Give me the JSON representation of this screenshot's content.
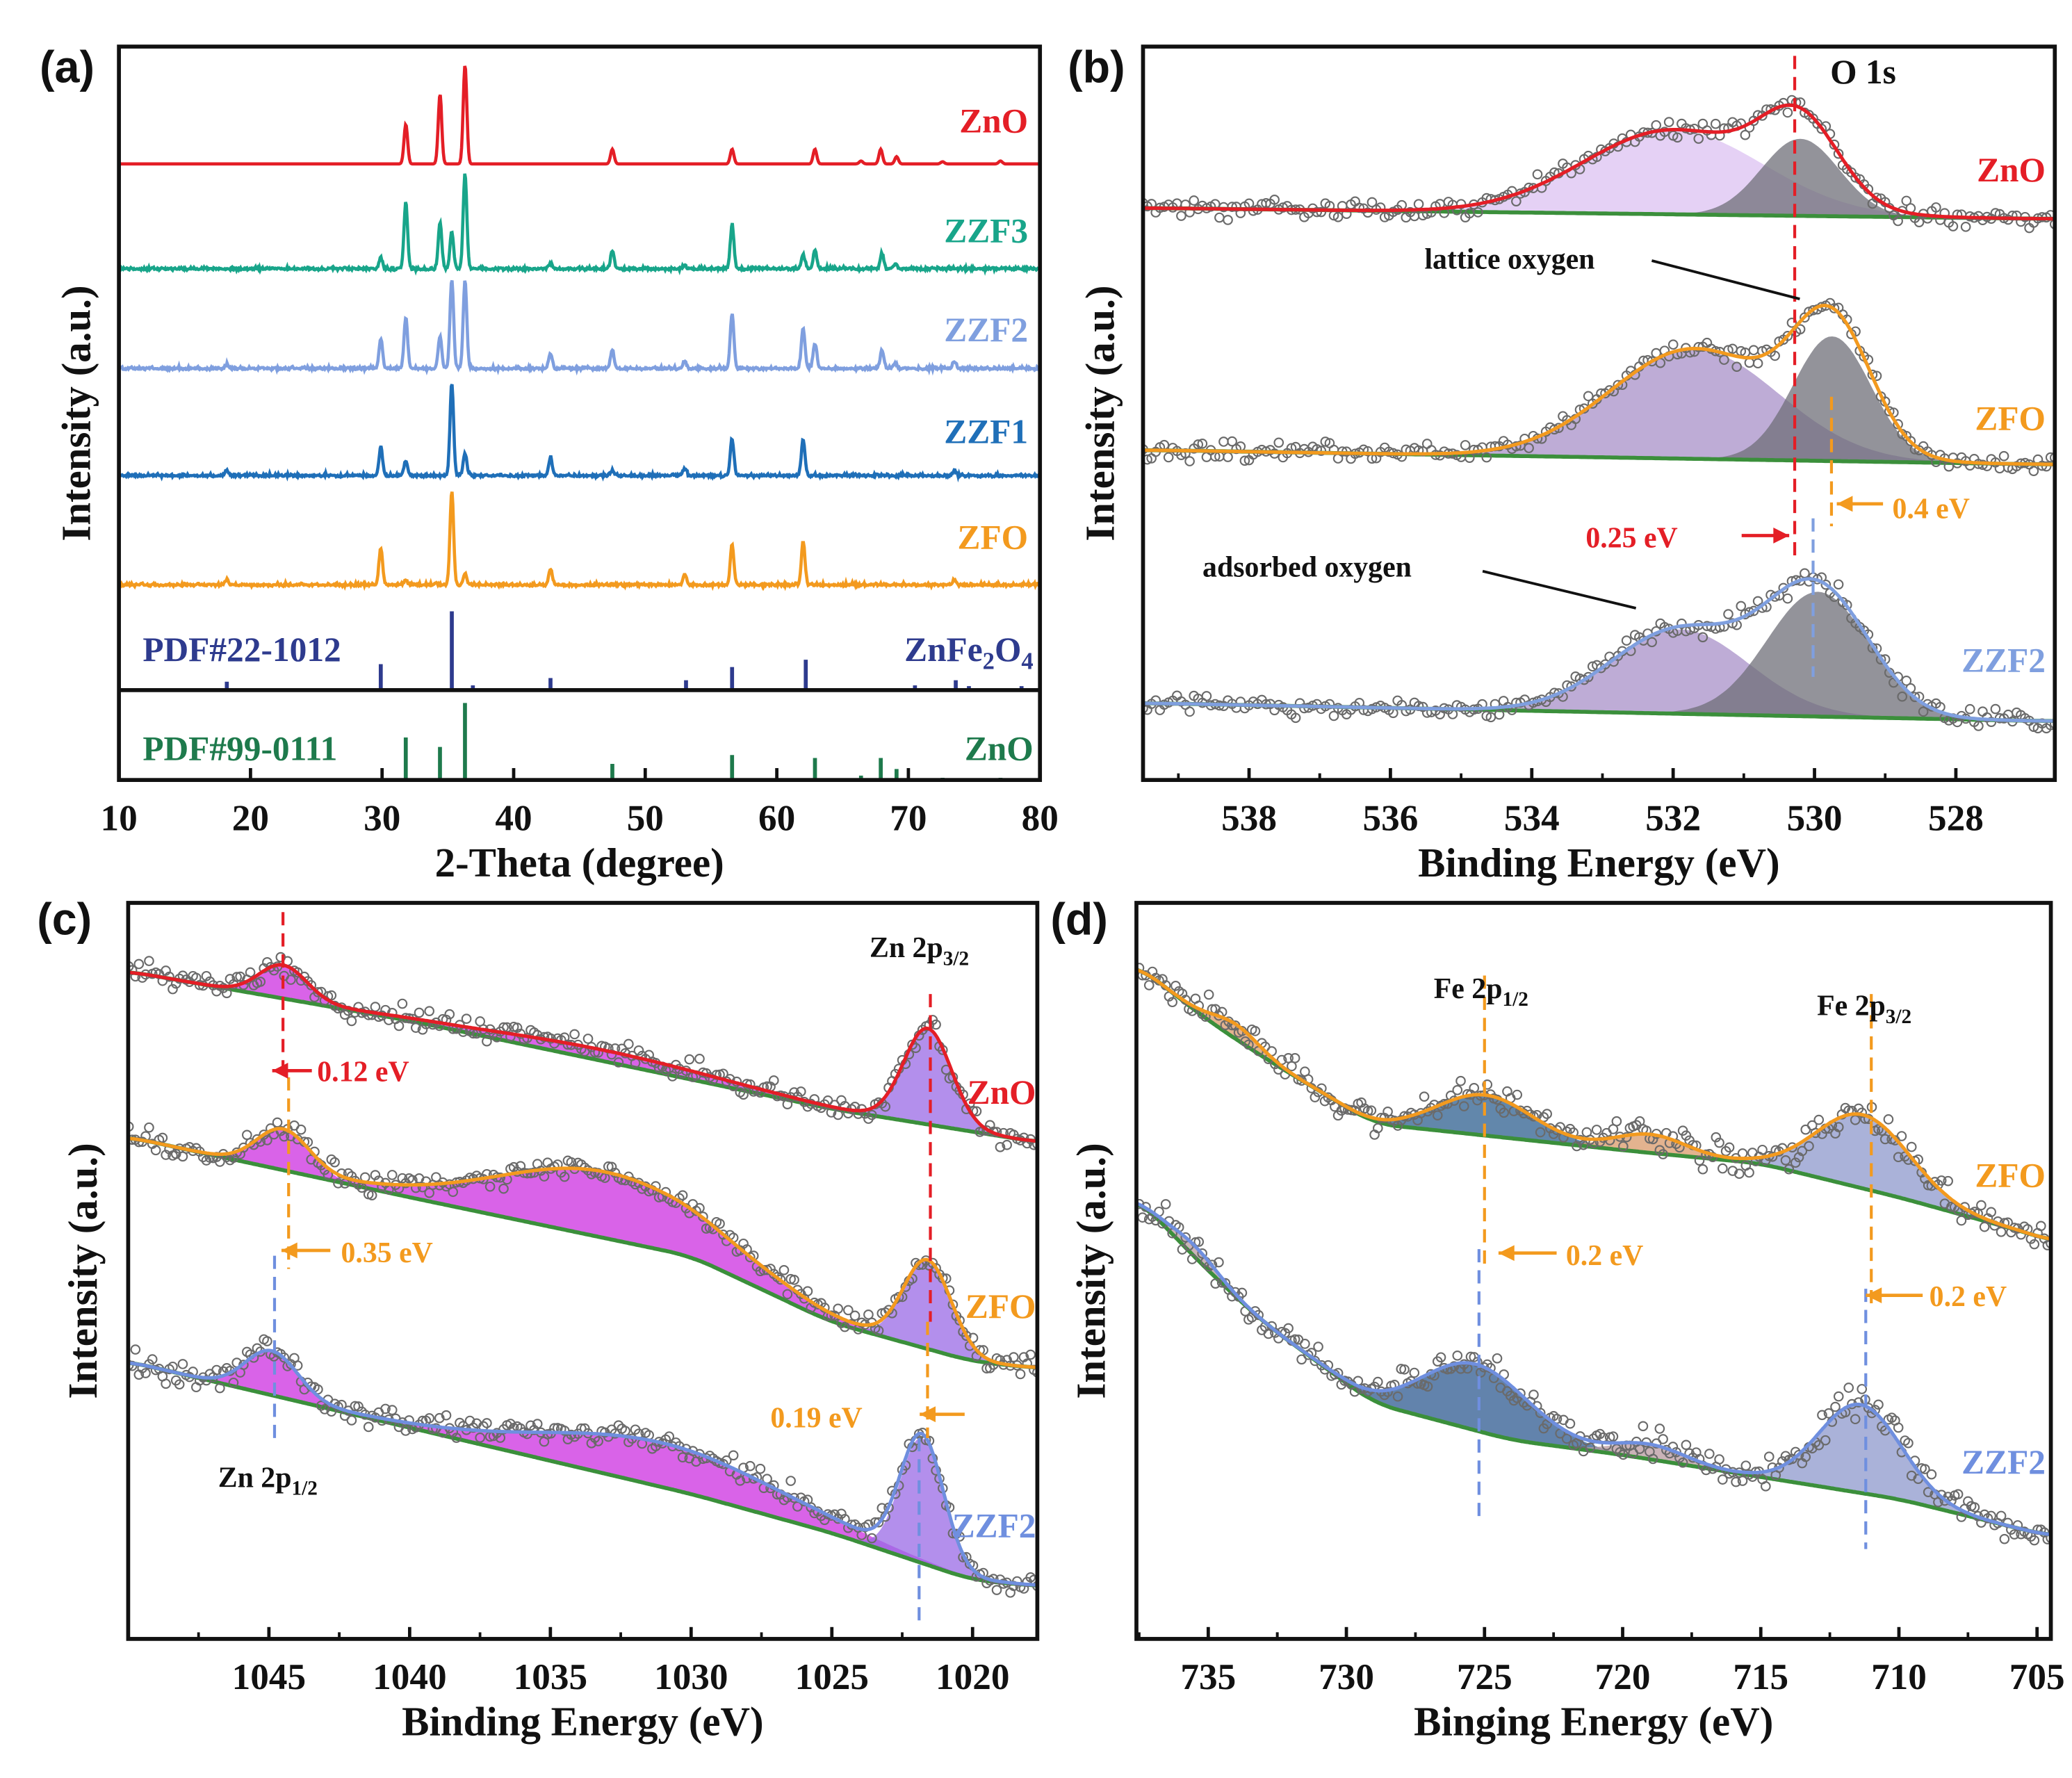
{
  "chart_data": [
    {
      "panel_label": "(a)",
      "type": "line",
      "xlabel": "2-Theta (degree)",
      "ylabel": "Intensity (a.u.)",
      "xlim": [
        10,
        80
      ],
      "ylim": [
        0,
        100
      ],
      "xticks": [
        10,
        20,
        30,
        40,
        50,
        60,
        70,
        80
      ],
      "grid": false,
      "series": [
        {
          "name": "ZnO",
          "color": "#e41e26",
          "offset": 84,
          "peaks": [
            [
              31.8,
              5.4
            ],
            [
              34.4,
              9.5
            ],
            [
              36.3,
              13.5
            ],
            [
              47.5,
              2
            ],
            [
              56.6,
              2
            ],
            [
              62.9,
              2
            ],
            [
              66.4,
              0.4
            ],
            [
              67.9,
              2
            ],
            [
              69.1,
              1
            ],
            [
              72.6,
              0.3
            ],
            [
              77,
              0.4
            ]
          ]
        },
        {
          "name": "ZZF3",
          "color": "#18a58a",
          "offset": 69.6,
          "peaks": [
            [
              29.9,
              1.5
            ],
            [
              31.8,
              9
            ],
            [
              34.4,
              6.3
            ],
            [
              35.3,
              5
            ],
            [
              36.3,
              13
            ],
            [
              42.8,
              0.7
            ],
            [
              47.5,
              2.5
            ],
            [
              53,
              0.5
            ],
            [
              56.6,
              6
            ],
            [
              62,
              2
            ],
            [
              62.9,
              2.5
            ],
            [
              68,
              2
            ],
            [
              69,
              0.7
            ]
          ]
        },
        {
          "name": "ZZF2",
          "color": "#7f9fdf",
          "offset": 56,
          "peaks": [
            [
              18.2,
              0.5
            ],
            [
              29.9,
              4
            ],
            [
              31.8,
              7
            ],
            [
              34.4,
              4.5
            ],
            [
              35.3,
              12.2
            ],
            [
              36.3,
              12
            ],
            [
              42.8,
              2
            ],
            [
              47.5,
              2.5
            ],
            [
              53,
              1
            ],
            [
              56.6,
              7.5
            ],
            [
              62,
              5.5
            ],
            [
              62.9,
              3.5
            ],
            [
              68,
              2.5
            ],
            [
              69,
              0.7
            ],
            [
              73.5,
              1
            ]
          ]
        },
        {
          "name": "ZZF1",
          "color": "#1f6fb8",
          "offset": 41.4,
          "peaks": [
            [
              18.2,
              0.7
            ],
            [
              29.9,
              4
            ],
            [
              31.8,
              2
            ],
            [
              35.3,
              12.6
            ],
            [
              36.3,
              3
            ],
            [
              42.8,
              2.5
            ],
            [
              47.5,
              0.7
            ],
            [
              53,
              1
            ],
            [
              56.6,
              5
            ],
            [
              62,
              5
            ],
            [
              73.5,
              0.7
            ]
          ]
        },
        {
          "name": "ZFO",
          "color": "#f39a1e",
          "offset": 26.5,
          "peaks": [
            [
              18.2,
              0.7
            ],
            [
              29.9,
              5
            ],
            [
              31.8,
              0.7
            ],
            [
              35.3,
              12.8
            ],
            [
              36.3,
              1.5
            ],
            [
              42.8,
              2.2
            ],
            [
              53,
              1.5
            ],
            [
              56.6,
              5.5
            ],
            [
              62,
              6
            ],
            [
              73.5,
              0.7
            ]
          ]
        }
      ],
      "references": [
        {
          "name": "PDF#22-1012",
          "phase_parts": [
            {
              "t": "ZnFe"
            },
            {
              "t": "2",
              "sub": true
            },
            {
              "t": "O"
            },
            {
              "t": "4",
              "sub": true
            }
          ],
          "color": "#2e3b8e",
          "offset": 12.4,
          "sticks": [
            [
              18.2,
              1
            ],
            [
              29.9,
              3.4
            ],
            [
              35.3,
              10.6
            ],
            [
              36.9,
              0.5
            ],
            [
              42.8,
              1.5
            ],
            [
              53.1,
              1.2
            ],
            [
              56.6,
              3
            ],
            [
              62.2,
              4
            ],
            [
              70.5,
              0.5
            ],
            [
              73.6,
              1.2
            ],
            [
              74.6,
              0.4
            ],
            [
              78.6,
              0.4
            ]
          ]
        },
        {
          "name": "PDF#99-0111",
          "phase_parts": [
            {
              "t": "ZnO"
            }
          ],
          "color": "#1e7a4c",
          "offset": 0,
          "sticks": [
            [
              31.8,
              5.8
            ],
            [
              34.4,
              4.5
            ],
            [
              36.3,
              10.5
            ],
            [
              47.5,
              2.2
            ],
            [
              56.6,
              3.4
            ],
            [
              62.9,
              3
            ],
            [
              66.4,
              0.6
            ],
            [
              67.9,
              3
            ],
            [
              69.1,
              1.5
            ],
            [
              72.6,
              0.3
            ],
            [
              77,
              0.3
            ]
          ]
        }
      ]
    },
    {
      "panel_label": "(b)",
      "type": "line",
      "title": "O 1s",
      "xlabel": "Binding Energy (eV)",
      "ylabel": "Intensity (a.u.)",
      "xlim": [
        539.5,
        526.6
      ],
      "ylim": [
        0,
        100
      ],
      "xticks": [
        538,
        536,
        534,
        532,
        530,
        528
      ],
      "series": [
        {
          "name": "ZnO",
          "color": "#e41e26",
          "baseline": [
            [
              539.5,
              78
            ],
            [
              526.6,
              76.5
            ]
          ],
          "lattice": [
            530.2,
            10.5,
            1.3
          ],
          "adsorbed": [
            532.0,
            11.5,
            3.0
          ]
        },
        {
          "name": "ZFO",
          "color": "#f39a1e",
          "baseline": [
            [
              539.5,
              45
            ],
            [
              526.6,
              43
            ]
          ],
          "lattice": [
            529.75,
            17,
            1.3
          ],
          "adsorbed": [
            531.7,
            15,
            2.8
          ]
        },
        {
          "name": "ZZF2",
          "color": "#7f9fdf",
          "baseline": [
            [
              539.5,
              10.5
            ],
            [
              526.6,
              8
            ]
          ],
          "lattice": [
            529.95,
            17,
            1.7
          ],
          "adsorbed": [
            531.9,
            11.5,
            2.3
          ]
        }
      ],
      "annotations": {
        "lattice": "lattice oxygen",
        "adsorbed": "adsorbed oxygen",
        "shift_red": "0.25 eV",
        "shift_orange": "0.4 eV"
      },
      "reference_lines": [
        {
          "x": 530.28,
          "color": "#e41e26"
        },
        {
          "x": 529.76,
          "color": "#f39a1e"
        },
        {
          "x": 530.02,
          "color": "#7f9fdf"
        }
      ]
    },
    {
      "panel_label": "(c)",
      "type": "line",
      "xlabel": "Binding Energy (eV)",
      "ylabel": "Intensity (a.u.)",
      "xlim": [
        1050,
        1017.7
      ],
      "ylim": [
        0,
        100
      ],
      "xticks": [
        1045,
        1040,
        1035,
        1030,
        1025,
        1020
      ],
      "series": [
        {
          "name": "ZnO",
          "color": "#e41e26",
          "baseline": [
            [
              1050,
              90.7
            ],
            [
              1040,
              84
            ],
            [
              1025,
              72
            ],
            [
              1017.7,
              67.5
            ]
          ],
          "peaks": [
            [
              1044.5,
              4.5,
              2
            ],
            [
              1033,
              1.5,
              10
            ],
            [
              1021.6,
              13,
              2
            ]
          ]
        },
        {
          "name": "ZFO",
          "color": "#f39a1e",
          "baseline": [
            [
              1050,
              68.2
            ],
            [
              1040,
              60
            ],
            [
              1030,
              52
            ],
            [
              1025,
              43
            ],
            [
              1020,
              37.7
            ],
            [
              1017.7,
              36.8
            ]
          ],
          "peaks": [
            [
              1044.5,
              5.5,
              2.2
            ],
            [
              1033,
              9,
              9
            ],
            [
              1021.6,
              12,
              2
            ]
          ]
        },
        {
          "name": "ZZF2",
          "color": "#6f8fdf",
          "baseline": [
            [
              1050,
              37.7
            ],
            [
              1040,
              28.7
            ],
            [
              1030,
              19.7
            ],
            [
              1025,
              14.4
            ],
            [
              1020,
              8
            ],
            [
              1017.7,
              7.2
            ]
          ],
          "peaks": [
            [
              1044.9,
              6,
              2.2
            ],
            [
              1031,
              6,
              10
            ],
            [
              1021.8,
              17,
              1.8
            ]
          ]
        }
      ],
      "annotations": {
        "p32": {
          "main": "Zn 2p",
          "sub": "3/2"
        },
        "p12": {
          "main": "Zn 2p",
          "sub": "1/2"
        },
        "shift1": "0.12 eV",
        "shift2": "0.35 eV",
        "shift3": "0.19 eV"
      },
      "reference_lines": [
        {
          "x": 1044.5,
          "color": "#e41e26"
        },
        {
          "x": 1021.5,
          "color": "#e41e26"
        },
        {
          "x": 1044.3,
          "color": "#f39a1e"
        },
        {
          "x": 1021.6,
          "color": "#f39a1e"
        },
        {
          "x": 1044.8,
          "color": "#6f8fdf"
        },
        {
          "x": 1021.9,
          "color": "#6f8fdf"
        }
      ]
    },
    {
      "panel_label": "(d)",
      "type": "line",
      "xlabel": "Binging Energy (eV)",
      "ylabel": "Intensity (a.u.)",
      "xlim": [
        737.6,
        704.5
      ],
      "ylim": [
        0,
        100
      ],
      "xticks": [
        735,
        730,
        725,
        720,
        715,
        710,
        705
      ],
      "series": [
        {
          "name": "ZFO",
          "color": "#f39a1e",
          "baseline": [
            [
              737.6,
              91.6
            ],
            [
              735,
              84
            ],
            [
              733,
              79
            ],
            [
              729,
              70
            ],
            [
              724,
              68
            ],
            [
              720,
              66.4
            ],
            [
              715,
              64.6
            ],
            [
              710,
              60
            ],
            [
              705,
              54.8
            ],
            [
              704.5,
              54
            ]
          ],
          "peaks": [
            [
              734,
              2,
              2
            ],
            [
              725,
              5.5,
              4
            ],
            [
              719,
              2.5,
              3
            ],
            [
              711.3,
              10,
              4
            ]
          ]
        },
        {
          "name": "ZZF2",
          "color": "#6f8fdf",
          "baseline": [
            [
              737.6,
              60
            ],
            [
              735,
              50
            ],
            [
              733,
              43
            ],
            [
              729,
              32
            ],
            [
              724,
              27
            ],
            [
              720,
              25
            ],
            [
              715,
              22
            ],
            [
              710,
              19
            ],
            [
              705,
              14.4
            ],
            [
              704.5,
              14
            ]
          ],
          "peaks": [
            [
              735.5,
              1.5,
              2
            ],
            [
              725.3,
              9,
              4.5
            ],
            [
              719,
              2,
              3
            ],
            [
              711.4,
              12,
              3.5
            ]
          ]
        }
      ],
      "annotations": {
        "p12": {
          "main": "Fe 2p",
          "sub": "1/2"
        },
        "p32": {
          "main": "Fe 2p",
          "sub": "3/2"
        },
        "shift1": "0.2 eV",
        "shift2": "0.2 eV"
      },
      "reference_lines": [
        {
          "x": 725,
          "color": "#f39a1e"
        },
        {
          "x": 725.2,
          "color": "#6f8fdf"
        },
        {
          "x": 711,
          "color": "#f39a1e"
        },
        {
          "x": 711.2,
          "color": "#6f8fdf"
        }
      ]
    }
  ]
}
